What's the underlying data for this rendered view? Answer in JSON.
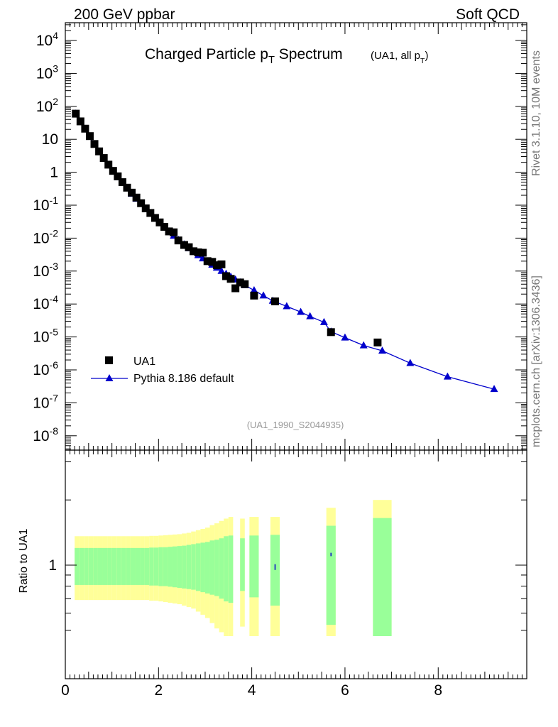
{
  "header": {
    "left": "200 GeV ppbar",
    "right": "Soft QCD"
  },
  "side_labels": {
    "rivet": "Rivet 3.1.10,  10M events",
    "mcplots": "mcplots.cern.ch [arXiv:1306.3436]"
  },
  "chart_data": [
    {
      "type": "scatter",
      "title": "Charged Particle p_T Spectrum",
      "subtitle": "(UA1, all p_T)",
      "watermark": "(UA1_1990_S2044935)",
      "xlabel": "",
      "ylabel": "",
      "yscale": "log",
      "xlim": [
        0,
        9.9
      ],
      "ylim": [
        1e-08,
        30000
      ],
      "ytick_labels": [
        "10^-8",
        "10^-7",
        "10^-6",
        "10^-5",
        "10^-4",
        "10^-3",
        "10^-2",
        "10^-1",
        "1",
        "10",
        "10^2",
        "10^3",
        "10^4"
      ],
      "legend": "bottom-left",
      "series": [
        {
          "name": "UA1",
          "marker": "square",
          "color": "#000000",
          "points": [
            [
              0.225,
              60
            ],
            [
              0.325,
              35
            ],
            [
              0.425,
              21
            ],
            [
              0.525,
              12.5
            ],
            [
              0.625,
              7.2
            ],
            [
              0.725,
              4.3
            ],
            [
              0.825,
              2.7
            ],
            [
              0.925,
              1.7
            ],
            [
              1.025,
              1.1
            ],
            [
              1.125,
              0.75
            ],
            [
              1.225,
              0.5
            ],
            [
              1.325,
              0.34
            ],
            [
              1.425,
              0.24
            ],
            [
              1.525,
              0.17
            ],
            [
              1.625,
              0.115
            ],
            [
              1.725,
              0.08
            ],
            [
              1.825,
              0.058
            ],
            [
              1.925,
              0.041
            ],
            [
              2.025,
              0.03
            ],
            [
              2.125,
              0.022
            ],
            [
              2.225,
              0.016
            ],
            [
              2.325,
              0.015
            ],
            [
              2.425,
              0.0085
            ],
            [
              2.55,
              0.0062
            ],
            [
              2.65,
              0.0053
            ],
            [
              2.75,
              0.004
            ],
            [
              2.85,
              0.0037
            ],
            [
              2.95,
              0.0036
            ],
            [
              3.05,
              0.002
            ],
            [
              3.15,
              0.0019
            ],
            [
              3.25,
              0.0015
            ],
            [
              3.35,
              0.0016
            ],
            [
              3.45,
              0.0007
            ],
            [
              3.55,
              0.00058
            ],
            [
              3.65,
              0.0003
            ],
            [
              3.75,
              0.00045
            ],
            [
              3.85,
              0.0004
            ],
            [
              4.05,
              0.00018
            ],
            [
              4.5,
              0.00012
            ],
            [
              5.7,
              1.4e-05
            ],
            [
              6.7,
              6.8e-06
            ]
          ]
        },
        {
          "name": "Pythia 8.186 default",
          "marker": "triangle",
          "color": "#0000cc",
          "points": [
            [
              0.225,
              60
            ],
            [
              0.325,
              34
            ],
            [
              0.425,
              20
            ],
            [
              0.525,
              12
            ],
            [
              0.625,
              7.0
            ],
            [
              0.725,
              4.2
            ],
            [
              0.825,
              2.6
            ],
            [
              0.925,
              1.65
            ],
            [
              1.025,
              1.05
            ],
            [
              1.125,
              0.7
            ],
            [
              1.225,
              0.47
            ],
            [
              1.325,
              0.32
            ],
            [
              1.425,
              0.22
            ],
            [
              1.525,
              0.155
            ],
            [
              1.625,
              0.108
            ],
            [
              1.725,
              0.077
            ],
            [
              1.825,
              0.055
            ],
            [
              1.925,
              0.04
            ],
            [
              2.025,
              0.029
            ],
            [
              2.125,
              0.0215
            ],
            [
              2.225,
              0.0158
            ],
            [
              2.325,
              0.0117
            ],
            [
              2.425,
              0.0088
            ],
            [
              2.55,
              0.0064
            ],
            [
              2.65,
              0.0049
            ],
            [
              2.75,
              0.0038
            ],
            [
              2.85,
              0.003
            ],
            [
              2.95,
              0.0024
            ],
            [
              3.05,
              0.0019
            ],
            [
              3.15,
              0.00155
            ],
            [
              3.25,
              0.00125
            ],
            [
              3.35,
              0.001
            ],
            [
              3.45,
              0.00082
            ],
            [
              3.55,
              0.00067
            ],
            [
              3.65,
              0.00055
            ],
            [
              3.75,
              0.00045
            ],
            [
              3.85,
              0.00037
            ],
            [
              4.05,
              0.00026
            ],
            [
              4.25,
              0.00018
            ],
            [
              4.45,
              0.000125
            ],
            [
              4.75,
              8.5e-05
            ],
            [
              5.05,
              5.7e-05
            ],
            [
              5.25,
              4.2e-05
            ],
            [
              5.55,
              2.8e-05
            ],
            [
              5.7,
              1.45e-05
            ],
            [
              6.0,
              9.5e-06
            ],
            [
              6.4,
              5.5e-06
            ],
            [
              6.8,
              3.8e-06
            ],
            [
              7.4,
              1.6e-06
            ],
            [
              8.2,
              6.2e-07
            ],
            [
              9.2,
              2.6e-07
            ]
          ]
        }
      ]
    },
    {
      "type": "ratio",
      "ylabel": "Ratio to UA1",
      "xlim": [
        0,
        9.9
      ],
      "ylim": [
        0.47,
        2.0
      ],
      "ytick_labels": [
        "1"
      ],
      "xtick_labels": [
        "0",
        "2",
        "4",
        "6",
        "8"
      ],
      "colors": {
        "inner": "#99ff99",
        "outer": "#ffff99"
      },
      "bands": [
        {
          "x0": 0.2,
          "x1": 0.3,
          "in": [
            0.81,
            1.2
          ],
          "out": [
            0.69,
            1.36
          ]
        },
        {
          "x0": 0.3,
          "x1": 0.4,
          "in": [
            0.81,
            1.2
          ],
          "out": [
            0.69,
            1.36
          ]
        },
        {
          "x0": 0.4,
          "x1": 0.5,
          "in": [
            0.81,
            1.2
          ],
          "out": [
            0.69,
            1.36
          ]
        },
        {
          "x0": 0.5,
          "x1": 0.6,
          "in": [
            0.81,
            1.2
          ],
          "out": [
            0.69,
            1.36
          ]
        },
        {
          "x0": 0.6,
          "x1": 0.7,
          "in": [
            0.81,
            1.2
          ],
          "out": [
            0.69,
            1.36
          ]
        },
        {
          "x0": 0.7,
          "x1": 0.8,
          "in": [
            0.81,
            1.2
          ],
          "out": [
            0.69,
            1.36
          ]
        },
        {
          "x0": 0.8,
          "x1": 0.9,
          "in": [
            0.81,
            1.2
          ],
          "out": [
            0.69,
            1.36
          ]
        },
        {
          "x0": 0.9,
          "x1": 1.0,
          "in": [
            0.81,
            1.2
          ],
          "out": [
            0.69,
            1.36
          ]
        },
        {
          "x0": 1.0,
          "x1": 1.1,
          "in": [
            0.81,
            1.2
          ],
          "out": [
            0.69,
            1.36
          ]
        },
        {
          "x0": 1.1,
          "x1": 1.2,
          "in": [
            0.81,
            1.2
          ],
          "out": [
            0.69,
            1.36
          ]
        },
        {
          "x0": 1.2,
          "x1": 1.3,
          "in": [
            0.81,
            1.2
          ],
          "out": [
            0.69,
            1.36
          ]
        },
        {
          "x0": 1.3,
          "x1": 1.4,
          "in": [
            0.81,
            1.2
          ],
          "out": [
            0.69,
            1.36
          ]
        },
        {
          "x0": 1.4,
          "x1": 1.5,
          "in": [
            0.81,
            1.2
          ],
          "out": [
            0.69,
            1.36
          ]
        },
        {
          "x0": 1.5,
          "x1": 1.6,
          "in": [
            0.81,
            1.2
          ],
          "out": [
            0.69,
            1.36
          ]
        },
        {
          "x0": 1.6,
          "x1": 1.7,
          "in": [
            0.81,
            1.2
          ],
          "out": [
            0.69,
            1.36
          ]
        },
        {
          "x0": 1.7,
          "x1": 1.8,
          "in": [
            0.81,
            1.2
          ],
          "out": [
            0.69,
            1.36
          ]
        },
        {
          "x0": 1.8,
          "x1": 1.9,
          "in": [
            0.805,
            1.205
          ],
          "out": [
            0.685,
            1.365
          ]
        },
        {
          "x0": 1.9,
          "x1": 2.0,
          "in": [
            0.805,
            1.205
          ],
          "out": [
            0.685,
            1.365
          ]
        },
        {
          "x0": 2.0,
          "x1": 2.1,
          "in": [
            0.8,
            1.21
          ],
          "out": [
            0.68,
            1.37
          ]
        },
        {
          "x0": 2.1,
          "x1": 2.2,
          "in": [
            0.8,
            1.21
          ],
          "out": [
            0.675,
            1.375
          ]
        },
        {
          "x0": 2.2,
          "x1": 2.3,
          "in": [
            0.795,
            1.215
          ],
          "out": [
            0.67,
            1.38
          ]
        },
        {
          "x0": 2.3,
          "x1": 2.4,
          "in": [
            0.79,
            1.22
          ],
          "out": [
            0.665,
            1.385
          ]
        },
        {
          "x0": 2.4,
          "x1": 2.5,
          "in": [
            0.785,
            1.225
          ],
          "out": [
            0.66,
            1.39
          ]
        },
        {
          "x0": 2.5,
          "x1": 2.6,
          "in": [
            0.78,
            1.23
          ],
          "out": [
            0.65,
            1.4
          ]
        },
        {
          "x0": 2.6,
          "x1": 2.7,
          "in": [
            0.775,
            1.24
          ],
          "out": [
            0.64,
            1.41
          ]
        },
        {
          "x0": 2.7,
          "x1": 2.8,
          "in": [
            0.77,
            1.25
          ],
          "out": [
            0.63,
            1.43
          ]
        },
        {
          "x0": 2.8,
          "x1": 2.9,
          "in": [
            0.76,
            1.26
          ],
          "out": [
            0.61,
            1.45
          ]
        },
        {
          "x0": 2.9,
          "x1": 3.0,
          "in": [
            0.75,
            1.27
          ],
          "out": [
            0.59,
            1.47
          ]
        },
        {
          "x0": 3.0,
          "x1": 3.1,
          "in": [
            0.74,
            1.28
          ],
          "out": [
            0.57,
            1.49
          ]
        },
        {
          "x0": 3.1,
          "x1": 3.2,
          "in": [
            0.73,
            1.3
          ],
          "out": [
            0.54,
            1.53
          ]
        },
        {
          "x0": 3.2,
          "x1": 3.3,
          "in": [
            0.72,
            1.31
          ],
          "out": [
            0.51,
            1.56
          ]
        },
        {
          "x0": 3.3,
          "x1": 3.4,
          "in": [
            0.7,
            1.33
          ],
          "out": [
            0.49,
            1.6
          ]
        },
        {
          "x0": 3.4,
          "x1": 3.5,
          "in": [
            0.68,
            1.36
          ],
          "out": [
            0.47,
            1.64
          ]
        },
        {
          "x0": 3.5,
          "x1": 3.6,
          "in": [
            0.67,
            1.37
          ],
          "out": [
            0.47,
            1.67
          ]
        },
        {
          "x0": 3.75,
          "x1": 3.85,
          "in": [
            0.76,
            1.33
          ],
          "out": [
            0.52,
            1.64
          ]
        },
        {
          "x0": 3.95,
          "x1": 4.15,
          "in": [
            0.71,
            1.37
          ],
          "out": [
            0.47,
            1.67
          ]
        },
        {
          "x0": 4.4,
          "x1": 4.6,
          "in": [
            0.65,
            1.38
          ],
          "out": [
            0.47,
            1.67
          ]
        },
        {
          "x0": 5.6,
          "x1": 5.8,
          "in": [
            0.53,
            1.52
          ],
          "out": [
            0.47,
            1.84
          ]
        },
        {
          "x0": 6.6,
          "x1": 7.0,
          "in": [
            0.47,
            1.65
          ],
          "out": [
            0.47,
            2.0
          ]
        }
      ],
      "mc_points": [
        {
          "x": 4.5,
          "y": 0.98,
          "err": 0.03
        },
        {
          "x": 5.7,
          "y": 1.12,
          "err": 0.02
        }
      ]
    }
  ]
}
